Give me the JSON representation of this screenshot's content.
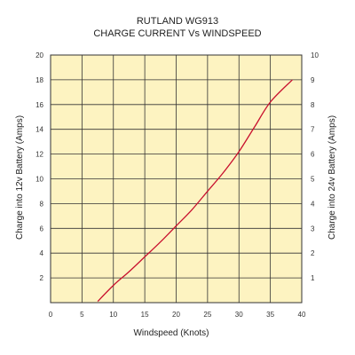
{
  "chart_data": {
    "type": "line",
    "title": "RUTLAND WG913",
    "subtitle": "CHARGE CURRENT Vs WINDSPEED",
    "xlabel": "Windspeed (Knots)",
    "ylabel": "Charge into 12v Battery (Amps)",
    "y2label": "Charge into 24v Battery (Amps)",
    "xlim": [
      0,
      40
    ],
    "ylim": [
      0,
      20
    ],
    "y2lim": [
      0,
      10
    ],
    "x_ticks": [
      0,
      5,
      10,
      15,
      20,
      25,
      30,
      35,
      40
    ],
    "y_ticks": [
      2,
      4,
      6,
      8,
      10,
      12,
      14,
      16,
      18,
      20
    ],
    "y2_ticks": [
      1,
      2,
      3,
      4,
      5,
      6,
      7,
      8,
      9,
      10
    ],
    "grid": true,
    "legend": "none",
    "background_color": "#fdf3c1",
    "grid_color": "#333333",
    "series": [
      {
        "color": "#c8102e",
        "x": [
          7.5,
          10,
          12.5,
          15,
          17.5,
          20,
          22.5,
          25,
          27.5,
          30,
          32.5,
          35,
          38.5
        ],
        "y": [
          0.1,
          1.4,
          2.5,
          3.7,
          4.9,
          6.2,
          7.5,
          9.0,
          10.5,
          12.2,
          14.2,
          16.2,
          18.0
        ]
      }
    ]
  }
}
